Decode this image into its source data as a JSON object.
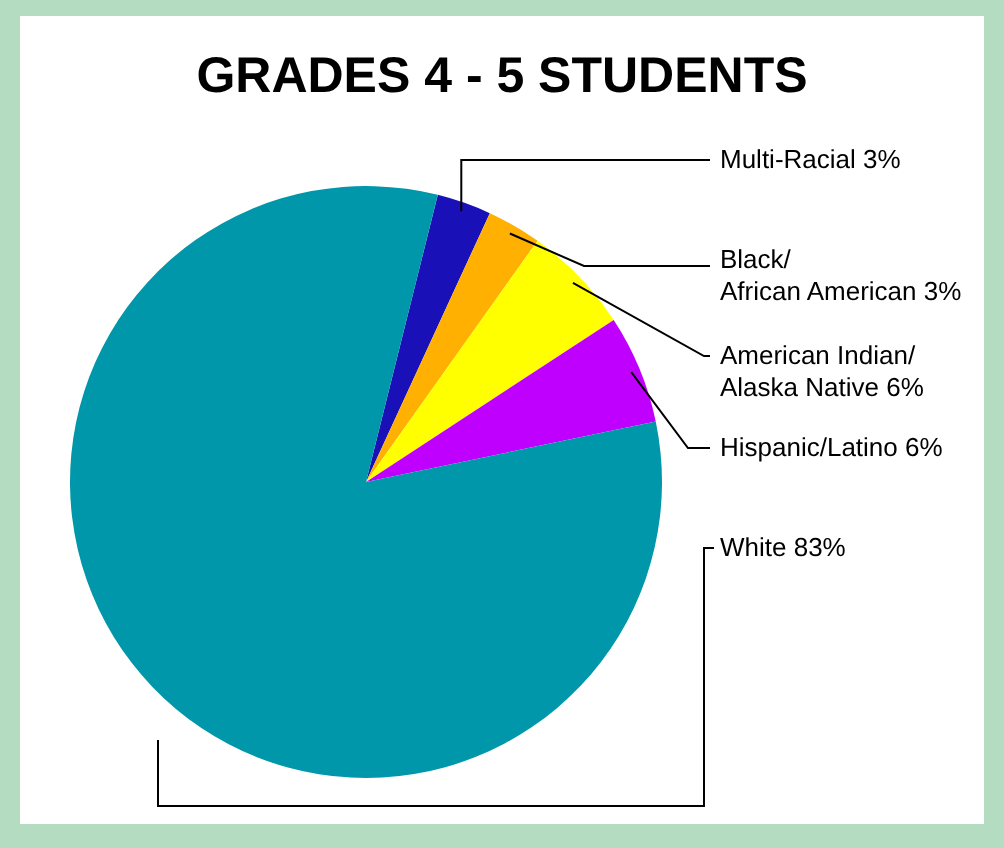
{
  "chart_data": {
    "type": "pie",
    "title": "GRADES 4 - 5 STUDENTS",
    "categories": [
      "Multi-Racial",
      "Black/\nAfrican American",
      "American Indian/\nAlaska Native",
      "Hispanic/Latino",
      "White"
    ],
    "values": [
      3,
      3,
      6,
      6,
      83
    ],
    "value_labels": [
      "3%",
      "3%",
      "6%",
      "6%",
      "83%"
    ],
    "colors": [
      "#1a10b8",
      "#ffb000",
      "#ffff00",
      "#c000ff",
      "#0097ab"
    ]
  }
}
